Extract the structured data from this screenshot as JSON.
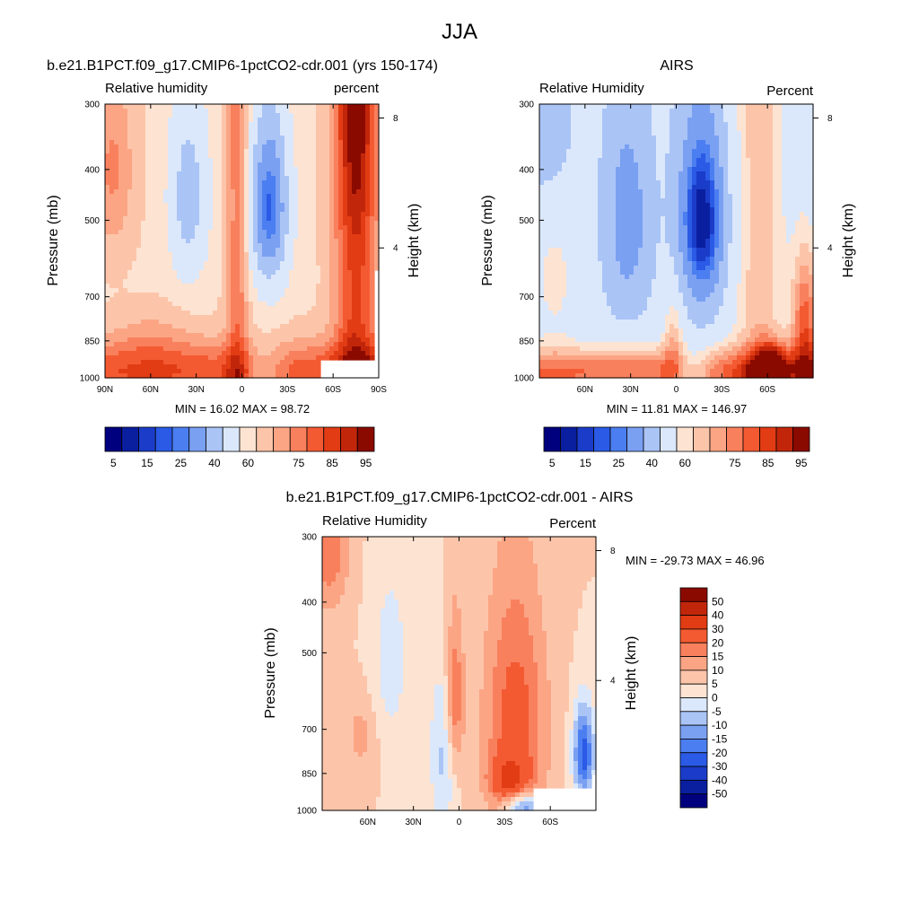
{
  "figure": {
    "title": "JJA"
  },
  "chart_data": [
    {
      "type": "heatmap",
      "title": "b.e21.B1PCT.f09_g17.CMIP6-1pctCO2-cdr.001 (yrs 150-174)",
      "left_string": "Relative humidity",
      "right_string": "percent",
      "ylabel": "Pressure (mb)",
      "y2label": "Height (km)",
      "xlim": [
        90,
        -90
      ],
      "x_ticks": [
        90,
        60,
        30,
        0,
        -30,
        -60,
        -90
      ],
      "x_tick_labels": [
        "90N",
        "60N",
        "30N",
        "0",
        "30S",
        "60S",
        "90S"
      ],
      "y_ticks": [
        300,
        400,
        500,
        700,
        850,
        1000
      ],
      "y_tick_labels": [
        "300",
        "400",
        "500",
        "700",
        "850",
        "1000"
      ],
      "y2_ticks": [
        8,
        4
      ],
      "y2_tick_labels": [
        "8",
        "4"
      ],
      "stats": "MIN =  16.02  MAX =  98.72",
      "min": 16.02,
      "max": 98.72,
      "legend_levels": [
        5,
        10,
        15,
        20,
        25,
        30,
        40,
        50,
        60,
        65,
        70,
        75,
        80,
        85,
        90,
        95
      ],
      "legend_tick_labels": [
        "5",
        "15",
        "25",
        "40",
        "60",
        "75",
        "85",
        "95"
      ],
      "colors": [
        "#00007f",
        "#0a1fa0",
        "#1a3cc8",
        "#2a5ae6",
        "#4b7ef0",
        "#7aa0f2",
        "#aac4f6",
        "#dbe8fb",
        "#fde3d2",
        "#fcc5aa",
        "#fba585",
        "#f9805d",
        "#f45a32",
        "#e23c14",
        "#c2260a",
        "#8b0a00"
      ]
    },
    {
      "type": "heatmap",
      "title": "AIRS",
      "left_string": "Relative Humidity",
      "right_string": "Percent",
      "ylabel": "Pressure (mb)",
      "y2label": "Height (km)",
      "xlim": [
        90,
        -90
      ],
      "x_ticks": [
        60,
        30,
        0,
        -30,
        -60
      ],
      "x_tick_labels": [
        "60N",
        "30N",
        "0",
        "30S",
        "60S"
      ],
      "y_ticks": [
        300,
        400,
        500,
        700,
        850,
        1000
      ],
      "y_tick_labels": [
        "300",
        "400",
        "500",
        "700",
        "850",
        "1000"
      ],
      "y2_ticks": [
        8,
        4
      ],
      "y2_tick_labels": [
        "8",
        "4"
      ],
      "stats": "MIN =  11.81  MAX = 146.97",
      "min": 11.81,
      "max": 146.97,
      "legend_levels": [
        5,
        10,
        15,
        20,
        25,
        30,
        40,
        50,
        60,
        65,
        70,
        75,
        80,
        85,
        90,
        95
      ],
      "legend_tick_labels": [
        "5",
        "15",
        "25",
        "40",
        "60",
        "75",
        "85",
        "95"
      ],
      "colors": [
        "#00007f",
        "#0a1fa0",
        "#1a3cc8",
        "#2a5ae6",
        "#4b7ef0",
        "#7aa0f2",
        "#aac4f6",
        "#dbe8fb",
        "#fde3d2",
        "#fcc5aa",
        "#fba585",
        "#f9805d",
        "#f45a32",
        "#e23c14",
        "#c2260a",
        "#8b0a00"
      ]
    },
    {
      "type": "heatmap",
      "title": "b.e21.B1PCT.f09_g17.CMIP6-1pctCO2-cdr.001 - AIRS",
      "left_string": "Relative Humidity",
      "right_string": "Percent",
      "ylabel": "Pressure (mb)",
      "y2label": "Height (km)",
      "xlim": [
        90,
        -90
      ],
      "x_ticks": [
        60,
        30,
        0,
        -30,
        -60
      ],
      "x_tick_labels": [
        "60N",
        "30N",
        "0",
        "30S",
        "60S"
      ],
      "y_ticks": [
        300,
        400,
        500,
        700,
        850,
        1000
      ],
      "y_tick_labels": [
        "300",
        "400",
        "500",
        "700",
        "850",
        "1000"
      ],
      "y2_ticks": [
        8,
        4
      ],
      "y2_tick_labels": [
        "8",
        "4"
      ],
      "stats": "MIN = -29.73  MAX =  46.96",
      "min": -29.73,
      "max": 46.96,
      "legend_levels": [
        50,
        40,
        30,
        20,
        15,
        10,
        5,
        0,
        -5,
        -10,
        -15,
        -20,
        -30,
        -40,
        -50
      ],
      "legend_tick_labels": [
        "50",
        "40",
        "30",
        "20",
        "15",
        "10",
        "5",
        "0",
        "-5",
        "-10",
        "-15",
        "-20",
        "-30",
        "-40",
        "-50"
      ],
      "colors": [
        "#8b0a00",
        "#c2260a",
        "#e23c14",
        "#f45a32",
        "#f9805d",
        "#fba585",
        "#fcc5aa",
        "#fde3d2",
        "#dbe8fb",
        "#aac4f6",
        "#7aa0f2",
        "#4b7ef0",
        "#2a5ae6",
        "#1a3cc8",
        "#0a1fa0",
        "#00007f"
      ]
    }
  ]
}
